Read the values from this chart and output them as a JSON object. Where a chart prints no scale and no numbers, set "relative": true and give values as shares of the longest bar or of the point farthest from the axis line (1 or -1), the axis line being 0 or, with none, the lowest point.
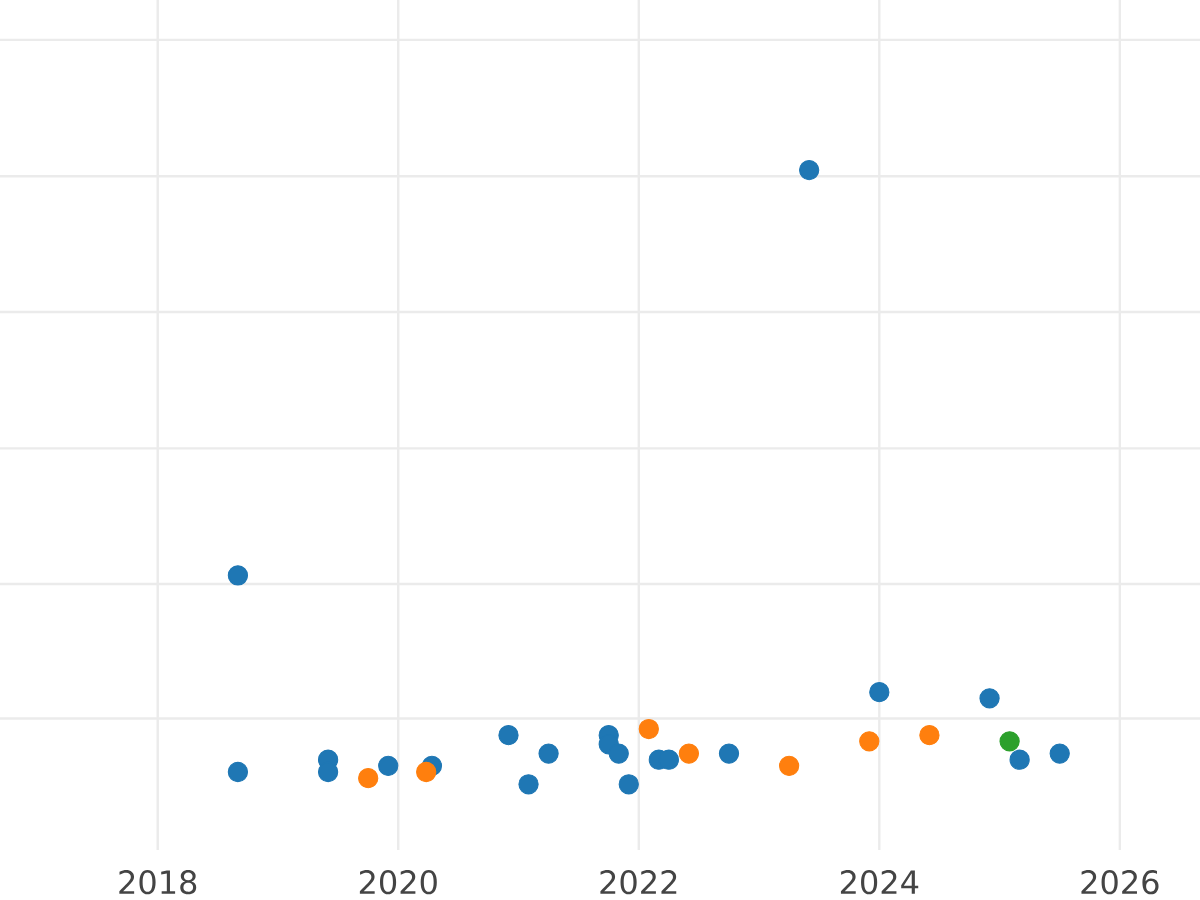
{
  "chart_data": {
    "type": "scatter",
    "relative": true,
    "grid": true,
    "marker": "circle",
    "tick_labels": "x",
    "xlim": [
      "2016-09-09",
      "2026-09-01"
    ],
    "xticks": [
      "2018",
      "2020",
      "2022",
      "2024",
      "2026"
    ],
    "series": [
      {
        "color": "#1f77b4",
        "x": [
          "2018-09",
          "2018-09",
          "2019-06",
          "2019-06",
          "2019-12",
          "2020-04-12",
          "2020-12",
          "2021-02",
          "2021-04",
          "2021-10",
          "2021-10",
          "2021-11",
          "2021-12",
          "2022-03",
          "2022-04",
          "2022-10",
          "2023-06",
          "2024-01",
          "2024-12",
          "2025-03",
          "2025-07"
        ],
        "values": [
          0.02,
          0.34,
          0.04,
          0.02,
          0.03,
          0.03,
          0.08,
          0,
          0.05,
          0.08,
          0.065,
          0.05,
          0,
          0.04,
          0.04,
          0.05,
          1,
          0.15,
          0.14,
          0.04,
          0.05
        ]
      },
      {
        "color": "#ff7f0e",
        "x": [
          "2019-10",
          "2020-03-25",
          "2022-02",
          "2022-06",
          "2023-04",
          "2023-12",
          "2024-06"
        ],
        "values": [
          0.01,
          0.02,
          0.09,
          0.05,
          0.03,
          0.07,
          0.08
        ]
      },
      {
        "color": "#2ca02c",
        "x": [
          "2025-02"
        ],
        "values": [
          0.07
        ]
      }
    ]
  }
}
